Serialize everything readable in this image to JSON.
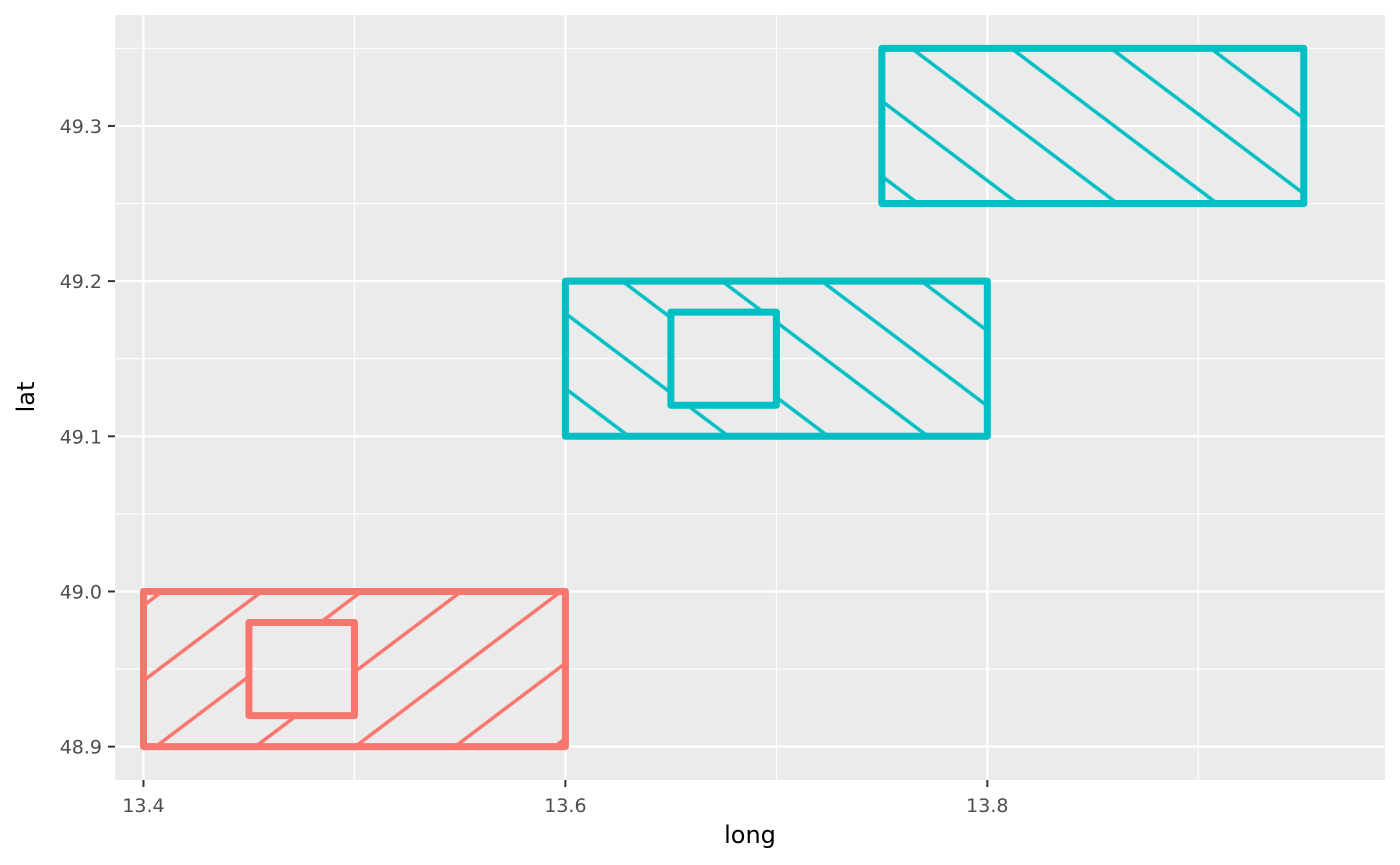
{
  "chart_data": {
    "type": "polygon-map",
    "xlabel": "long",
    "ylabel": "lat",
    "xlim": [
      13.3865,
      13.9885
    ],
    "ylim": [
      48.8785,
      49.3715
    ],
    "x_ticks": [
      13.4,
      13.6,
      13.8
    ],
    "x_tick_labels": [
      "13.4",
      "13.6",
      "13.8"
    ],
    "x_minor_ticks": [
      13.5,
      13.7,
      13.9
    ],
    "y_ticks": [
      48.9,
      49.0,
      49.1,
      49.2,
      49.3
    ],
    "y_tick_labels": [
      "48.9",
      "49.0",
      "49.1",
      "49.2",
      "49.3"
    ],
    "y_minor_ticks": [
      48.95,
      49.05,
      49.15,
      49.25,
      49.35
    ],
    "grid": true,
    "legend": "none",
    "panel_background": "#ebebeb",
    "grid_color": "#ffffff",
    "polygons": [
      {
        "color": "#f8766d",
        "pattern": "stripe-up",
        "outer": [
          [
            13.4,
            48.9
          ],
          [
            13.6,
            48.9
          ],
          [
            13.6,
            49.0
          ],
          [
            13.4,
            49.0
          ]
        ],
        "hole": [
          [
            13.45,
            48.92
          ],
          [
            13.5,
            48.92
          ],
          [
            13.5,
            48.98
          ],
          [
            13.45,
            48.98
          ]
        ]
      },
      {
        "color": "#00bfc4",
        "pattern": "stripe-down",
        "outer": [
          [
            13.6,
            49.1
          ],
          [
            13.8,
            49.1
          ],
          [
            13.8,
            49.2
          ],
          [
            13.6,
            49.2
          ]
        ],
        "hole": [
          [
            13.65,
            49.12
          ],
          [
            13.7,
            49.12
          ],
          [
            13.7,
            49.18
          ],
          [
            13.65,
            49.18
          ]
        ]
      },
      {
        "color": "#00bfc4",
        "pattern": "stripe-down",
        "outer": [
          [
            13.75,
            49.25
          ],
          [
            13.95,
            49.25
          ],
          [
            13.95,
            49.35
          ],
          [
            13.75,
            49.35
          ]
        ],
        "hole": null
      }
    ]
  }
}
